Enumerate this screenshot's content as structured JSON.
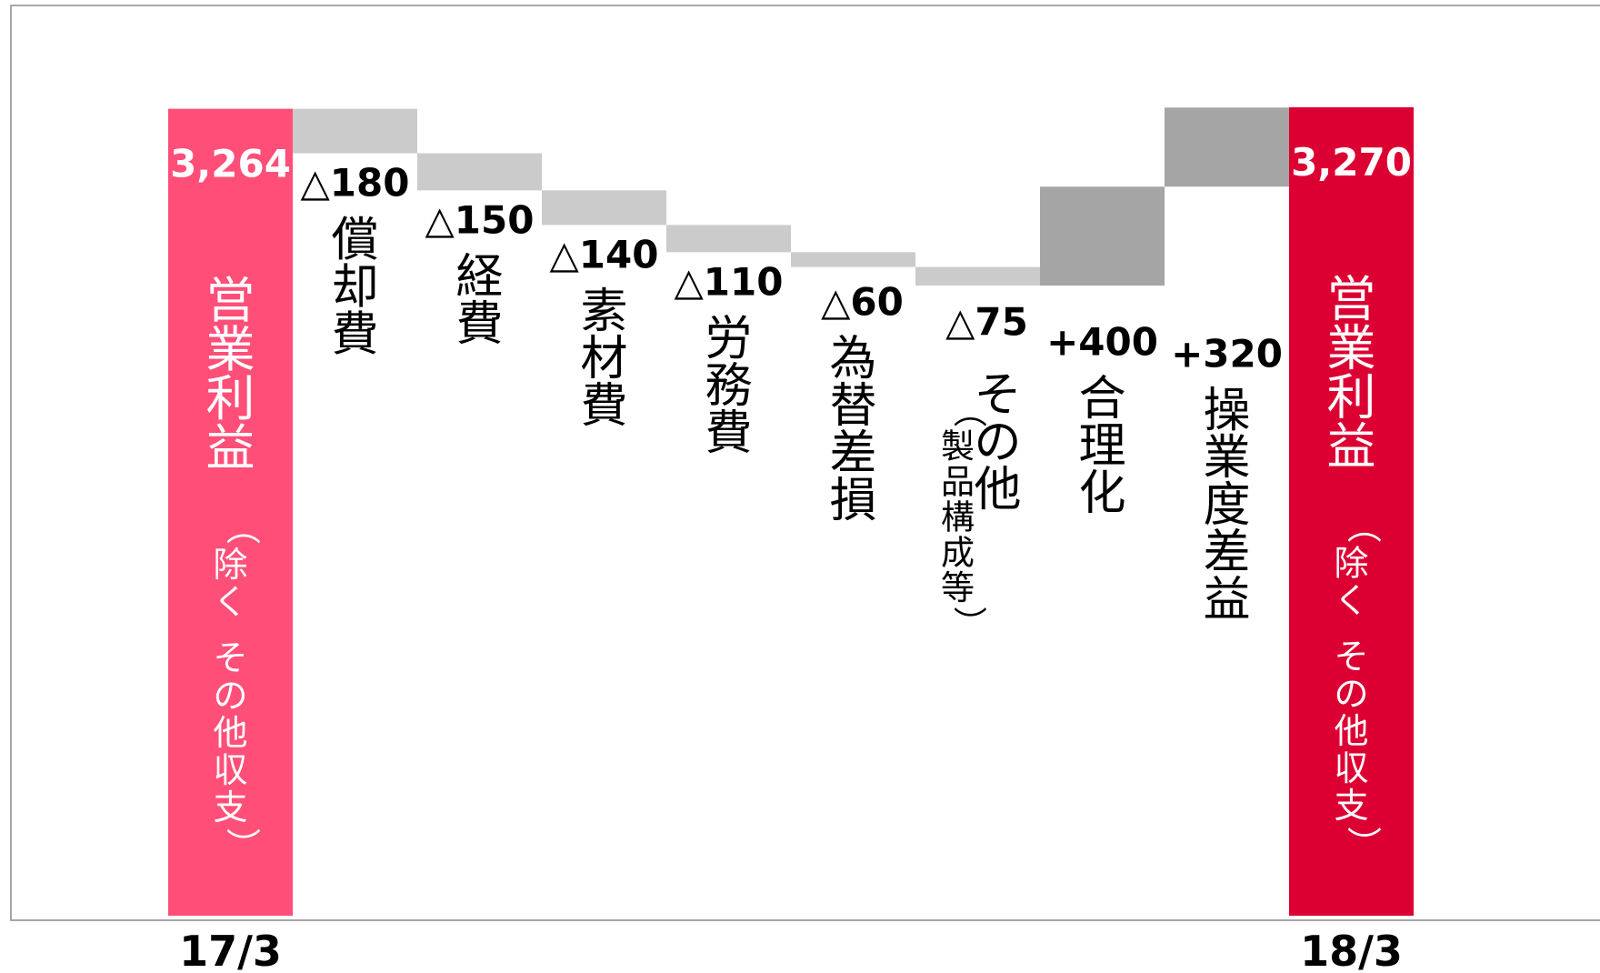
{
  "chart_data": {
    "type": "waterfall",
    "start": {
      "period": "17/3",
      "value": 3264,
      "value_label": "3,264",
      "label_main": "営業利益",
      "label_sub": "（除く その他収支）",
      "color": "#ff4f79"
    },
    "end": {
      "period": "18/3",
      "value": 3270,
      "value_label": "3,270",
      "label_main": "営業利益",
      "label_sub": "（除く その他収支）",
      "color": "#dc0032"
    },
    "steps": [
      {
        "value": -180,
        "value_label": "△180",
        "label": "償却費",
        "sub": "",
        "color": "#cbcbcb"
      },
      {
        "value": -150,
        "value_label": "△150",
        "label": "経費",
        "sub": "",
        "color": "#cbcbcb"
      },
      {
        "value": -140,
        "value_label": "△140",
        "label": "素材費",
        "sub": "",
        "color": "#cbcbcb"
      },
      {
        "value": -110,
        "value_label": "△110",
        "label": "労務費",
        "sub": "",
        "color": "#cbcbcb"
      },
      {
        "value": -60,
        "value_label": "△60",
        "label": "為替差損",
        "sub": "",
        "color": "#cbcbcb"
      },
      {
        "value": -75,
        "value_label": "△75",
        "label": "その他",
        "sub": "（製品構成等）",
        "color": "#cbcbcb"
      },
      {
        "value": 400,
        "value_label": "+400",
        "label": "合理化",
        "sub": "",
        "color": "#a5a5a5"
      },
      {
        "value": 320,
        "value_label": "+320",
        "label": "操業度差益",
        "sub": "",
        "color": "#a5a5a5"
      }
    ]
  }
}
